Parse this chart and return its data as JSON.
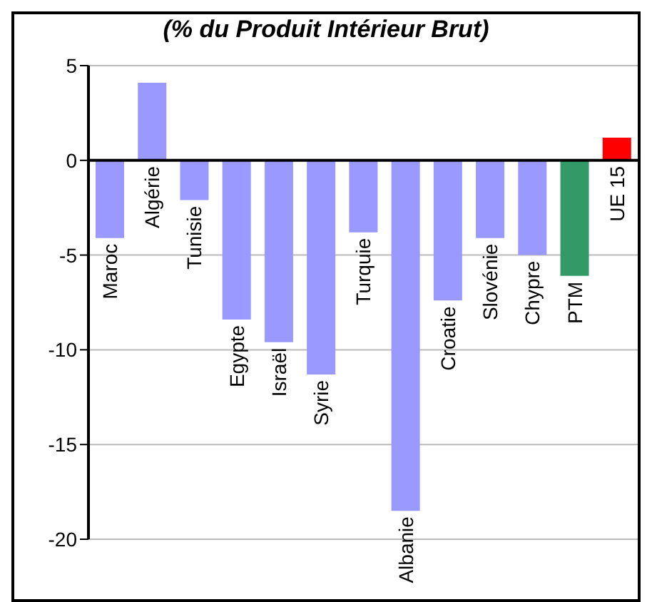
{
  "chart_data": {
    "type": "bar",
    "title": "(% du Produit Intérieur Brut)",
    "categories": [
      "Maroc",
      "Algérie",
      "Tunisie",
      "Egypte",
      "Israël",
      "Syrie",
      "Turquie",
      "Albanie",
      "Croatie",
      "Slovénie",
      "Chypre",
      "PTM",
      "UE 15"
    ],
    "values": [
      -4.1,
      4.1,
      -2.1,
      -8.4,
      -9.6,
      -11.3,
      -3.8,
      -18.5,
      -7.4,
      -4.1,
      -5.0,
      -6.1,
      1.2
    ],
    "colors": [
      "#9999ff",
      "#9999ff",
      "#9999ff",
      "#9999ff",
      "#9999ff",
      "#9999ff",
      "#9999ff",
      "#9999ff",
      "#9999ff",
      "#9999ff",
      "#9999ff",
      "#339966",
      "#ff0000"
    ],
    "ylim": [
      -20,
      5
    ],
    "yticks": [
      -20,
      -15,
      -10,
      -5,
      0,
      5
    ],
    "grid": "y"
  }
}
